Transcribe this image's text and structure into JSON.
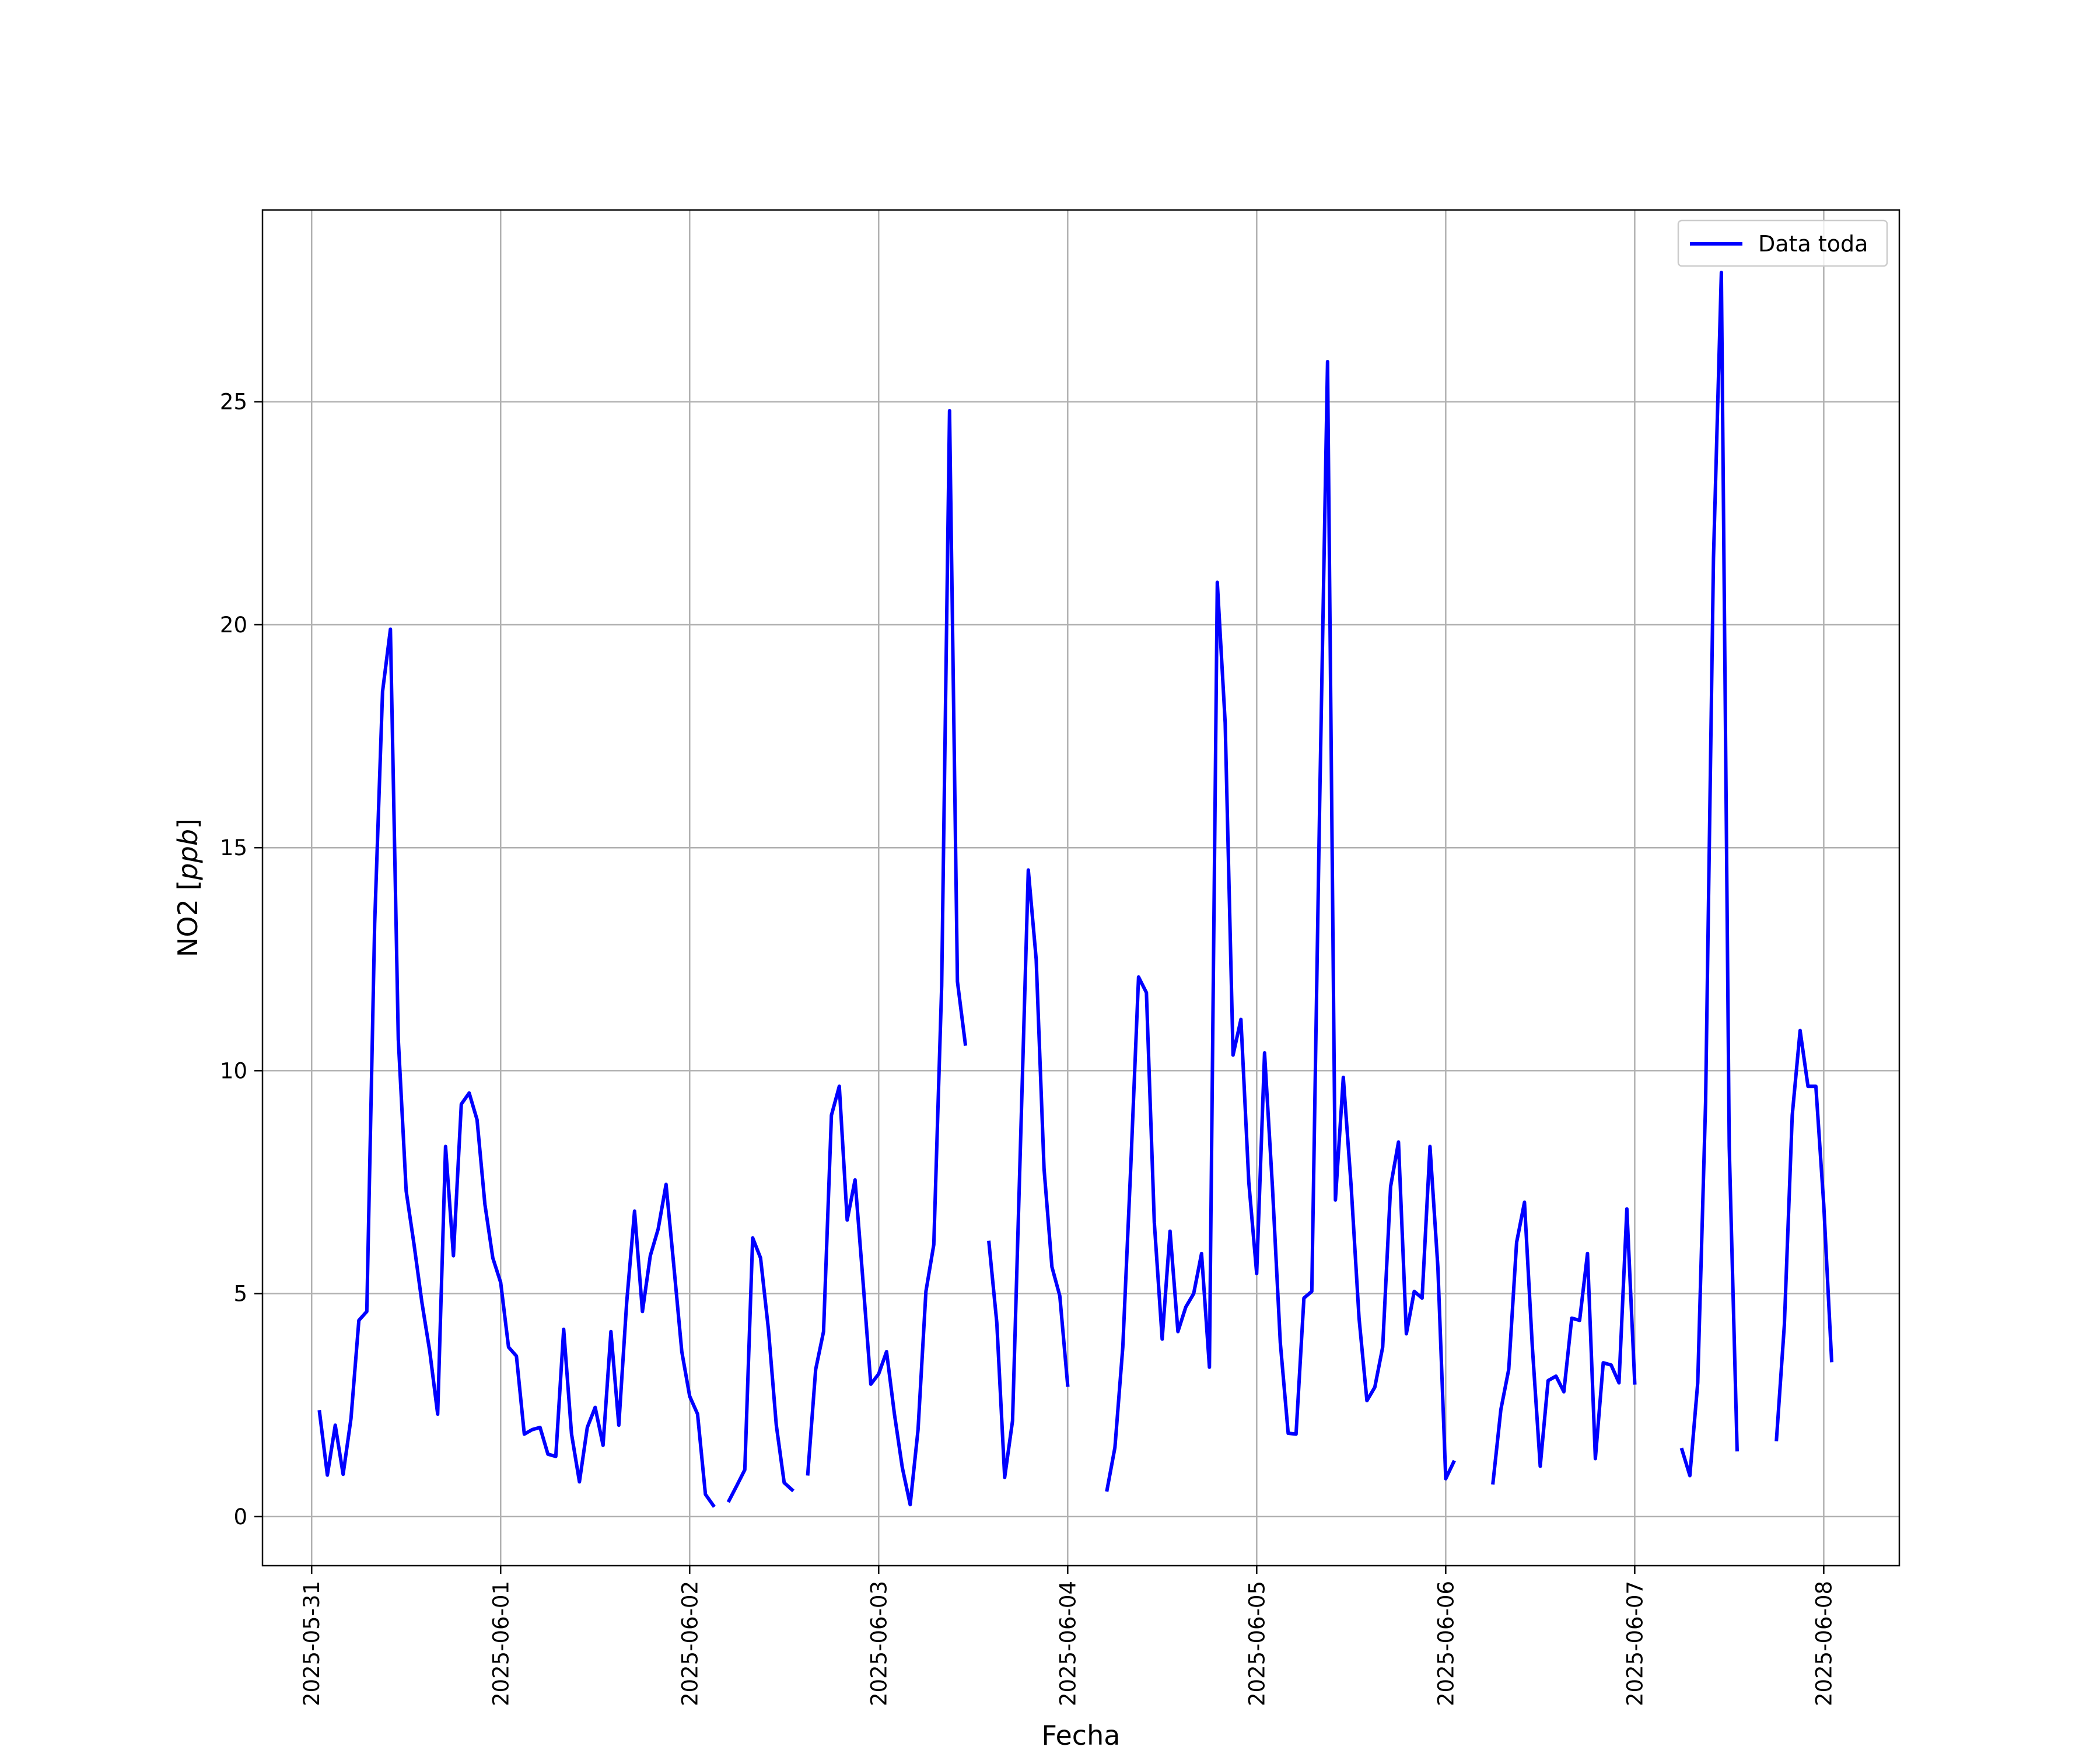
{
  "chart_data": {
    "type": "line",
    "title": "",
    "xlabel": "Fecha",
    "ylabel": "NO2 [ppb]",
    "ylabel_parts": {
      "main": "NO2 [",
      "unit": "ppb",
      "end": "]"
    },
    "xlim_days": [
      -0.26,
      8.4
    ],
    "ylim": [
      -1.1,
      29.3
    ],
    "x_tick_labels": [
      "2025-05-31",
      "2025-06-01",
      "2025-06-02",
      "2025-06-03",
      "2025-06-04",
      "2025-06-05",
      "2025-06-06",
      "2025-06-07",
      "2025-06-08"
    ],
    "y_ticks": [
      0,
      5,
      10,
      15,
      20,
      25
    ],
    "y_tick_labels": [
      "0",
      "5",
      "10",
      "15",
      "20",
      "25"
    ],
    "grid": true,
    "legend_position": "top-right",
    "series": [
      {
        "name": "Data toda",
        "color": "#0000ff",
        "x_start": "2025-05-31 01:00",
        "x_step_hours": 1,
        "values": [
          2.35,
          0.93,
          2.05,
          0.95,
          2.2,
          4.4,
          4.6,
          13.3,
          18.5,
          19.9,
          10.7,
          7.3,
          6.1,
          4.8,
          3.7,
          2.3,
          8.3,
          5.85,
          9.25,
          9.5,
          8.9,
          7.0,
          5.8,
          5.25,
          3.8,
          3.6,
          1.85,
          1.95,
          2.0,
          1.4,
          1.35,
          4.2,
          1.85,
          0.78,
          2.0,
          2.45,
          1.6,
          4.15,
          2.05,
          4.8,
          6.85,
          4.6,
          5.85,
          6.45,
          7.45,
          5.6,
          3.7,
          2.7,
          2.3,
          0.5,
          0.25,
          null,
          0.36,
          0.7,
          1.05,
          6.25,
          5.8,
          4.2,
          2.05,
          0.76,
          0.6,
          null,
          0.96,
          3.3,
          4.15,
          9.0,
          9.65,
          6.65,
          7.55,
          5.3,
          2.97,
          3.2,
          3.7,
          2.3,
          1.1,
          0.27,
          1.95,
          5.05,
          6.1,
          11.9,
          24.8,
          12.0,
          10.6,
          null,
          null,
          6.15,
          4.35,
          0.88,
          2.15,
          8.3,
          14.5,
          12.5,
          7.8,
          5.6,
          4.95,
          2.95,
          null,
          null,
          null,
          null,
          0.6,
          1.55,
          3.8,
          7.8,
          12.1,
          11.75,
          6.6,
          3.98,
          6.4,
          4.15,
          4.7,
          5.0,
          5.9,
          3.35,
          20.95,
          17.8,
          10.35,
          11.15,
          7.5,
          5.45,
          10.4,
          7.4,
          3.9,
          1.87,
          1.85,
          4.9,
          5.05,
          16.0,
          25.9,
          7.1,
          9.85,
          7.4,
          4.45,
          2.6,
          2.9,
          3.8,
          7.4,
          8.4,
          4.1,
          5.05,
          4.9,
          8.3,
          5.6,
          0.85,
          1.22,
          null,
          null,
          null,
          null,
          0.76,
          2.4,
          3.3,
          6.15,
          7.05,
          3.8,
          1.13,
          3.05,
          3.15,
          2.8,
          4.45,
          4.4,
          5.9,
          1.3,
          3.45,
          3.4,
          3.0,
          6.9,
          3.0,
          null,
          null,
          null,
          null,
          null,
          1.5,
          0.92,
          3.0,
          9.3,
          21.5,
          27.9,
          8.3,
          1.5,
          null,
          null,
          null,
          null,
          1.73,
          4.3,
          9.0,
          10.9,
          9.65,
          9.65,
          7.0,
          3.5
        ]
      }
    ]
  }
}
